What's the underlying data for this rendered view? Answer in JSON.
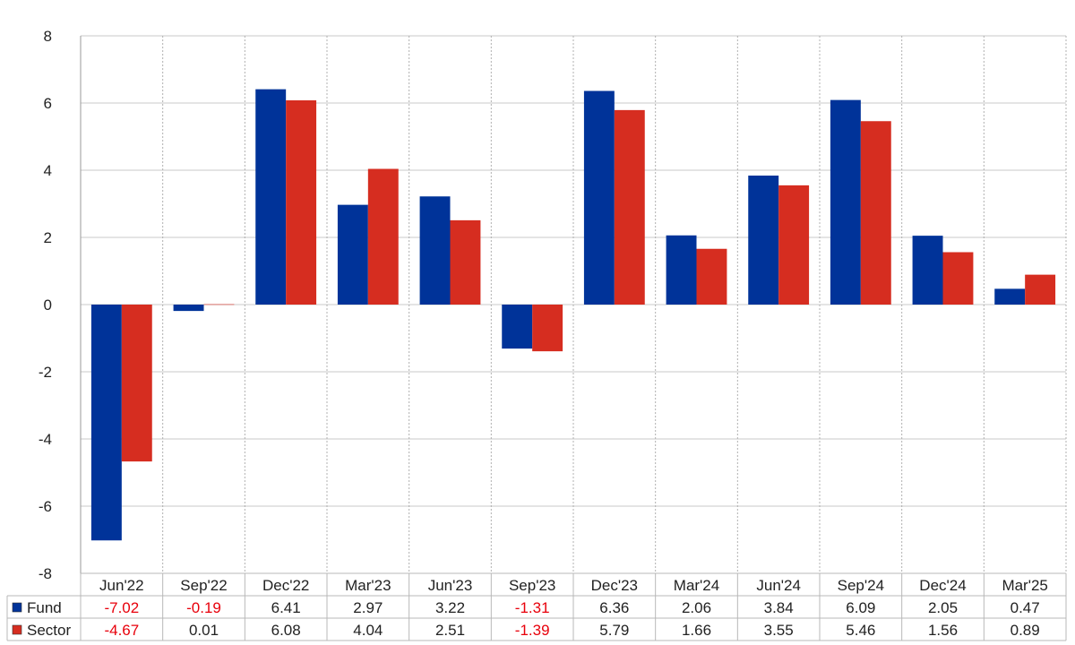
{
  "chart_data": {
    "type": "bar",
    "categories": [
      "Jun'22",
      "Sep'22",
      "Dec'22",
      "Mar'23",
      "Jun'23",
      "Sep'23",
      "Dec'23",
      "Mar'24",
      "Jun'24",
      "Sep'24",
      "Dec'24",
      "Mar'25"
    ],
    "series": [
      {
        "name": "Fund",
        "color": "#003399",
        "values": [
          -7.02,
          -0.19,
          6.41,
          2.97,
          3.22,
          -1.31,
          6.36,
          2.06,
          3.84,
          6.09,
          2.05,
          0.47
        ],
        "labels": [
          "-7.02",
          "-0.19",
          "6.41",
          "2.97",
          "3.22",
          "-1.31",
          "6.36",
          "2.06",
          "3.84",
          "6.09",
          "2.05",
          "0.47"
        ]
      },
      {
        "name": "Sector",
        "color": "#d62d20",
        "values": [
          -4.67,
          0.01,
          6.08,
          4.04,
          2.51,
          -1.39,
          5.79,
          1.66,
          3.55,
          5.46,
          1.56,
          0.89
        ],
        "labels": [
          "-4.67",
          "0.01",
          "6.08",
          "4.04",
          "2.51",
          "-1.39",
          "5.79",
          "1.66",
          "3.55",
          "5.46",
          "1.56",
          "0.89"
        ]
      }
    ],
    "yticks": [
      "8",
      "6",
      "4",
      "2",
      "0",
      "-2",
      "-4",
      "-6",
      "-8"
    ],
    "ylim": [
      -8,
      8
    ],
    "grid": true,
    "legend": "data-table-left",
    "negative_value_color": "#e8000b",
    "positive_value_color": "#222222"
  }
}
